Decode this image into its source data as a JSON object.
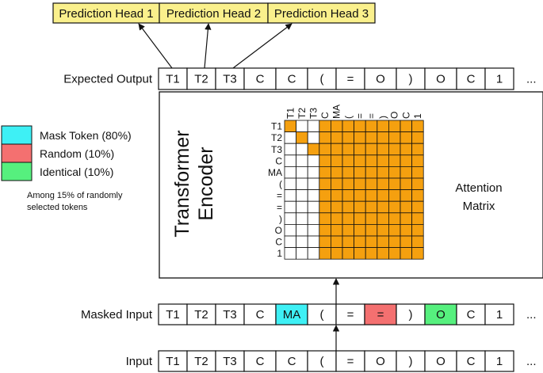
{
  "prediction_heads": [
    "Prediction Head 1",
    "Prediction Head 2",
    "Prediction Head 3"
  ],
  "rows": {
    "expected_output": {
      "label": "Expected Output",
      "tokens": [
        "T1",
        "T2",
        "T3",
        "C",
        "C",
        "(",
        "=",
        "O",
        ")",
        "O",
        "C",
        "1"
      ],
      "ellipsis": "..."
    },
    "masked_input": {
      "label": "Masked Input",
      "tokens": [
        "T1",
        "T2",
        "T3",
        "C",
        "MA",
        "(",
        "=",
        "=",
        ")",
        "O",
        "C",
        "1"
      ],
      "highlights": {
        "4": "mask",
        "7": "random",
        "9": "identical"
      },
      "ellipsis": "..."
    },
    "input": {
      "label": "Input",
      "tokens": [
        "T1",
        "T2",
        "T3",
        "C",
        "C",
        "(",
        "=",
        "O",
        ")",
        "O",
        "C",
        "1"
      ],
      "ellipsis": "..."
    }
  },
  "legend": {
    "items": [
      {
        "key": "mask",
        "label": "Mask Token (80%)",
        "color": "#3ef0f5"
      },
      {
        "key": "random",
        "label": "Random (10%)",
        "color": "#f47070"
      },
      {
        "key": "identical",
        "label": "Identical (10%)",
        "color": "#56f07e"
      }
    ],
    "note": [
      "Among 15% of randomly",
      "selected tokens"
    ]
  },
  "encoder": {
    "title": [
      "Transformer",
      "Encoder"
    ],
    "attention_label": [
      "Attention",
      "Matrix"
    ],
    "matrix_tokens": [
      "T1",
      "T2",
      "T3",
      "C",
      "MA",
      "(",
      "=",
      "=",
      ")",
      "O",
      "C",
      "1"
    ],
    "filled_color": "#f5a00f",
    "prefix_length": 3
  },
  "colors": {
    "head_fill": "#faf08c"
  }
}
